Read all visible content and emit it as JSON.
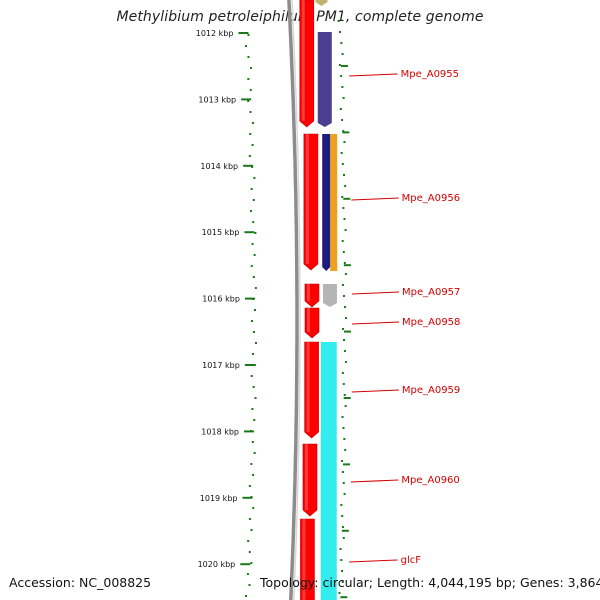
{
  "title": "Methylibium petroleiphilum PM1, complete genome",
  "footer": {
    "accession_label": "Accession:",
    "accession": "NC_008825",
    "topology_label": "Topology:",
    "topology": "circular;",
    "length_label": "Length:",
    "length": "4,044,195 bp;",
    "genes_label": "Genes:",
    "genes": "3,864"
  },
  "scale_labels": [
    "1012 kbp",
    "1013 kbp",
    "1014 kbp",
    "1015 kbp",
    "1016 kbp",
    "1017 kbp",
    "1018 kbp",
    "1019 kbp",
    "1020 kbp"
  ],
  "gene_labels": [
    "Mpe_A0955",
    "Mpe_A0956",
    "Mpe_A0957",
    "Mpe_A0958",
    "Mpe_A0959",
    "Mpe_A0960",
    "glcF"
  ],
  "colors": {
    "forward_gene": "#ff0000",
    "cog_blue": "#4b3d8f",
    "cog_navy": "#1c1c7a",
    "cog_orange": "#f0a020",
    "cog_grey": "#b5b5b5",
    "cog_cyan": "#33ecee",
    "cog_khaki": "#c0b36a",
    "backbone": "#8c8c8c",
    "scale_tick": "#1a7a1a",
    "label": "#d40000"
  }
}
